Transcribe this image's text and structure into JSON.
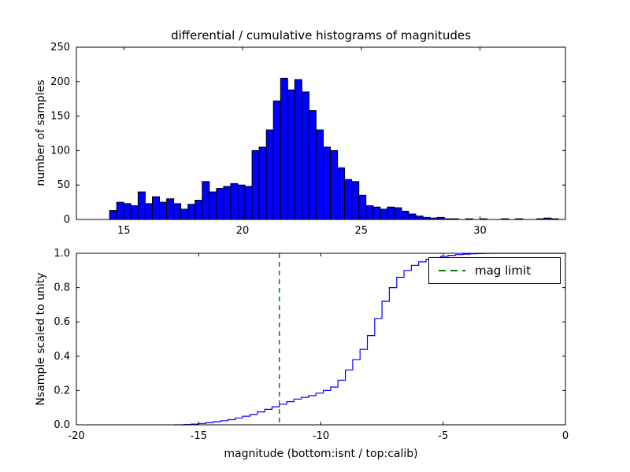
{
  "figure_title": "differential / cumulative histograms of magnitudes",
  "chart_data": [
    {
      "type": "bar",
      "name": "differential histogram (top panel)",
      "title": "differential / cumulative histograms of magnitudes",
      "xlabel": "",
      "ylabel": "number of samples",
      "xlim": [
        13.0,
        33.6
      ],
      "ylim": [
        0,
        250
      ],
      "xticks": [
        15,
        20,
        25,
        30
      ],
      "xtick_labels": [
        "15",
        "20",
        "25",
        "30"
      ],
      "yticks": [
        0,
        50,
        100,
        150,
        200,
        250
      ],
      "ytick_labels": [
        "0",
        "50",
        "100",
        "150",
        "200",
        "250"
      ],
      "grid": false,
      "bin_start": 14.4,
      "bin_width": 0.3,
      "counts": [
        13,
        25,
        23,
        20,
        40,
        23,
        33,
        25,
        30,
        23,
        15,
        22,
        28,
        55,
        40,
        45,
        48,
        52,
        50,
        48,
        100,
        105,
        130,
        172,
        205,
        188,
        203,
        185,
        158,
        130,
        105,
        100,
        75,
        58,
        55,
        35,
        20,
        18,
        15,
        18,
        17,
        12,
        8,
        5,
        3,
        2,
        3,
        1,
        1,
        0,
        1,
        0,
        1,
        0,
        0,
        1,
        0,
        1,
        0,
        0,
        1,
        2,
        1
      ],
      "bar_color": "#0000ff",
      "bar_edge_color": "#000000"
    },
    {
      "type": "line",
      "name": "cumulative histogram (bottom panel)",
      "xlabel": "magnitude (bottom:isnt / top:calib)",
      "ylabel": "Nsample scaled to unity",
      "xlim": [
        -20,
        0
      ],
      "ylim": [
        0.0,
        1.0
      ],
      "xticks": [
        -20,
        -15,
        -10,
        -5,
        0
      ],
      "xtick_labels": [
        "-20",
        "-15",
        "-10",
        "-5",
        "0"
      ],
      "yticks": [
        0,
        0.2,
        0.4,
        0.6,
        0.8,
        1.0
      ],
      "ytick_labels": [
        "0.0",
        "0.2",
        "0.4",
        "0.6",
        "0.8",
        "1.0"
      ],
      "grid": false,
      "step": true,
      "line_color": "#0000ff",
      "x": [
        -16.0,
        -15.6,
        -15.3,
        -15.0,
        -14.7,
        -14.4,
        -14.1,
        -13.8,
        -13.5,
        -13.2,
        -12.9,
        -12.6,
        -12.3,
        -12.0,
        -11.7,
        -11.4,
        -11.1,
        -10.8,
        -10.5,
        -10.2,
        -9.9,
        -9.6,
        -9.3,
        -9.0,
        -8.7,
        -8.4,
        -8.1,
        -7.8,
        -7.5,
        -7.2,
        -6.9,
        -6.6,
        -6.3,
        -6.0,
        -5.7,
        -5.4,
        -5.1,
        -4.8,
        -4.5,
        -4.2,
        -3.9,
        -3.6,
        -3.3,
        -3.0,
        0.0
      ],
      "y": [
        0,
        0.002,
        0.004,
        0.008,
        0.012,
        0.018,
        0.024,
        0.03,
        0.04,
        0.05,
        0.06,
        0.075,
        0.09,
        0.105,
        0.12,
        0.135,
        0.15,
        0.16,
        0.17,
        0.185,
        0.2,
        0.22,
        0.26,
        0.32,
        0.38,
        0.44,
        0.52,
        0.62,
        0.72,
        0.8,
        0.86,
        0.9,
        0.93,
        0.95,
        0.965,
        0.975,
        0.982,
        0.988,
        0.992,
        0.995,
        0.997,
        0.998,
        0.999,
        1.0,
        1.0
      ],
      "vline": {
        "x": -11.7,
        "color": "#008000",
        "linestyle": "dashed",
        "label": "mag limit"
      },
      "legend": {
        "location": "upper right",
        "entries": [
          {
            "label": "mag limit",
            "color": "#008000",
            "linestyle": "dashed"
          }
        ]
      }
    }
  ]
}
